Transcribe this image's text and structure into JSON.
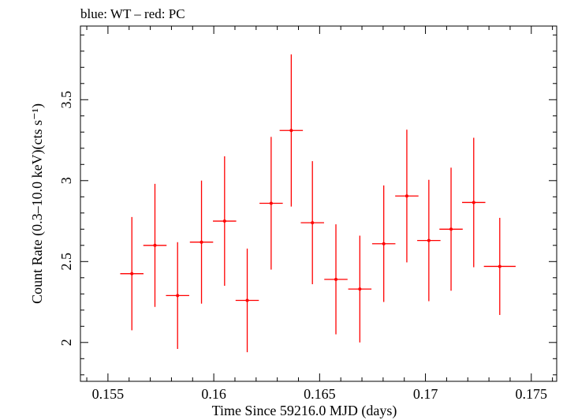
{
  "chart_data": {
    "type": "scatter",
    "title": "blue: WT – red: PC",
    "xlabel": "Time Since 59216.0 MJD (days)",
    "ylabel": "Count Rate (0.3–10.0 keV)(cts s⁻¹)",
    "xlim": [
      0.1537,
      0.1762
    ],
    "ylim": [
      1.76,
      3.955
    ],
    "x_ticks": [
      0.155,
      0.16,
      0.165,
      0.17,
      0.175
    ],
    "x_tick_labels": [
      "0.155",
      "0.16",
      "0.165",
      "0.17",
      "0.175"
    ],
    "y_ticks": [
      2,
      2.5,
      3,
      3.5
    ],
    "y_tick_labels": [
      "2",
      "2.5",
      "3",
      "3.5"
    ],
    "grid": false,
    "series": [
      {
        "color": "#ff0000",
        "points": [
          {
            "x": 0.15613,
            "xerr": 0.00055,
            "y": 2.425,
            "yerr": 0.35
          },
          {
            "x": 0.15722,
            "xerr": 0.00055,
            "y": 2.6,
            "yerr": 0.38
          },
          {
            "x": 0.15829,
            "xerr": 0.00055,
            "y": 2.29,
            "yerr": 0.33
          },
          {
            "x": 0.15942,
            "xerr": 0.00055,
            "y": 2.62,
            "yerr": 0.38
          },
          {
            "x": 0.16051,
            "xerr": 0.00055,
            "y": 2.75,
            "yerr": 0.4
          },
          {
            "x": 0.16158,
            "xerr": 0.00055,
            "y": 2.26,
            "yerr": 0.32
          },
          {
            "x": 0.16271,
            "xerr": 0.00055,
            "y": 2.86,
            "yerr": 0.41
          },
          {
            "x": 0.16366,
            "xerr": 0.00055,
            "y": 3.31,
            "yerr": 0.47
          },
          {
            "x": 0.16466,
            "xerr": 0.00055,
            "y": 2.74,
            "yerr": 0.38
          },
          {
            "x": 0.16577,
            "xerr": 0.00055,
            "y": 2.39,
            "yerr": 0.34
          },
          {
            "x": 0.1669,
            "xerr": 0.00055,
            "y": 2.33,
            "yerr": 0.33
          },
          {
            "x": 0.16803,
            "xerr": 0.00055,
            "y": 2.61,
            "yerr": 0.36
          },
          {
            "x": 0.16912,
            "xerr": 0.00055,
            "y": 2.905,
            "yerr": 0.41
          },
          {
            "x": 0.17016,
            "xerr": 0.00055,
            "y": 2.63,
            "yerr": 0.375
          },
          {
            "x": 0.17121,
            "xerr": 0.00055,
            "y": 2.7,
            "yerr": 0.38
          },
          {
            "x": 0.17228,
            "xerr": 0.00055,
            "y": 2.865,
            "yerr": 0.4
          },
          {
            "x": 0.17351,
            "xerr": 0.00075,
            "y": 2.47,
            "yerr": 0.3
          }
        ]
      }
    ]
  }
}
